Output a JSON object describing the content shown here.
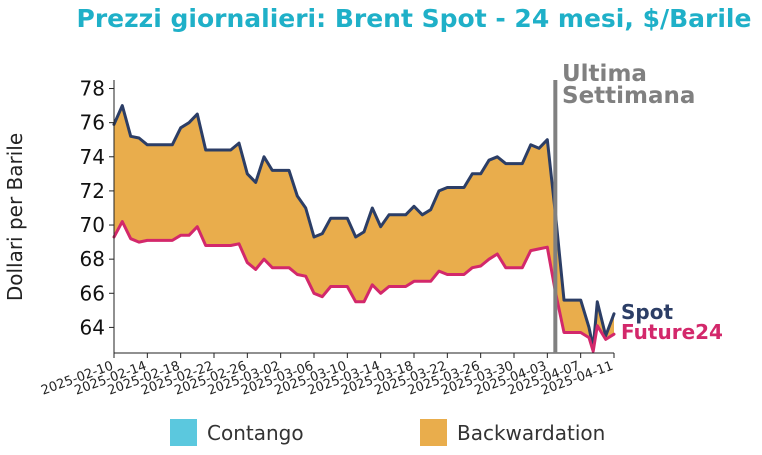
{
  "chart_data": {
    "type": "area",
    "title": "Prezzi giornalieri: Brent Spot - 24 mesi, $/Barile",
    "ylabel": "Dollari per Barile",
    "xlabel": "",
    "ylim": [
      62.5,
      78.5
    ],
    "yticks": [
      64,
      66,
      68,
      70,
      72,
      74,
      76,
      78
    ],
    "xlim": [
      "2025-02-10",
      "2025-04-11"
    ],
    "xticks": [
      "2025-02-10",
      "2025-02-14",
      "2025-02-18",
      "2025-02-22",
      "2025-02-26",
      "2025-03-02",
      "2025-03-06",
      "2025-03-10",
      "2025-03-14",
      "2025-03-18",
      "2025-03-22",
      "2025-03-26",
      "2025-03-30",
      "2025-04-03",
      "2025-04-07",
      "2025-04-11"
    ],
    "annotation": {
      "date": "2025-04-03",
      "text_line1": "Ultima",
      "text_line2": "Settimana",
      "color": "#808080"
    },
    "series": [
      {
        "name": "Spot",
        "color": "#2c3e66",
        "points": [
          [
            "2025-02-10",
            75.9
          ],
          [
            "2025-02-11",
            77.0
          ],
          [
            "2025-02-12",
            75.2
          ],
          [
            "2025-02-13",
            75.1
          ],
          [
            "2025-02-14",
            74.7
          ],
          [
            "2025-02-17",
            74.7
          ],
          [
            "2025-02-18",
            75.7
          ],
          [
            "2025-02-19",
            76.0
          ],
          [
            "2025-02-20",
            76.5
          ],
          [
            "2025-02-21",
            74.4
          ],
          [
            "2025-02-24",
            74.4
          ],
          [
            "2025-02-25",
            74.8
          ],
          [
            "2025-02-26",
            73.0
          ],
          [
            "2025-02-27",
            72.5
          ],
          [
            "2025-02-28",
            74.0
          ],
          [
            "2025-03-01",
            73.2
          ],
          [
            "2025-03-03",
            73.2
          ],
          [
            "2025-03-04",
            71.7
          ],
          [
            "2025-03-05",
            71.0
          ],
          [
            "2025-03-06",
            69.3
          ],
          [
            "2025-03-07",
            69.5
          ],
          [
            "2025-03-08",
            70.4
          ],
          [
            "2025-03-10",
            70.4
          ],
          [
            "2025-03-11",
            69.3
          ],
          [
            "2025-03-12",
            69.6
          ],
          [
            "2025-03-13",
            71.0
          ],
          [
            "2025-03-14",
            69.9
          ],
          [
            "2025-03-15",
            70.6
          ],
          [
            "2025-03-17",
            70.6
          ],
          [
            "2025-03-18",
            71.1
          ],
          [
            "2025-03-19",
            70.6
          ],
          [
            "2025-03-20",
            70.9
          ],
          [
            "2025-03-21",
            72.0
          ],
          [
            "2025-03-22",
            72.2
          ],
          [
            "2025-03-24",
            72.2
          ],
          [
            "2025-03-25",
            73.0
          ],
          [
            "2025-03-26",
            73.0
          ],
          [
            "2025-03-27",
            73.8
          ],
          [
            "2025-03-28",
            74.0
          ],
          [
            "2025-03-29",
            73.6
          ],
          [
            "2025-03-31",
            73.6
          ],
          [
            "2025-04-01",
            74.7
          ],
          [
            "2025-04-02",
            74.5
          ],
          [
            "2025-04-03",
            75.0
          ],
          [
            "2025-04-04",
            70.5
          ],
          [
            "2025-04-05",
            65.6
          ],
          [
            "2025-04-07",
            65.6
          ],
          [
            "2025-04-08",
            64.0
          ],
          [
            "2025-04-08T12:00",
            62.8
          ],
          [
            "2025-04-09",
            65.5
          ],
          [
            "2025-04-10",
            63.5
          ],
          [
            "2025-04-11",
            64.8
          ]
        ]
      },
      {
        "name": "Future24",
        "color": "#d3286b",
        "points": [
          [
            "2025-02-10",
            69.3
          ],
          [
            "2025-02-11",
            70.2
          ],
          [
            "2025-02-12",
            69.2
          ],
          [
            "2025-02-13",
            69.0
          ],
          [
            "2025-02-14",
            69.1
          ],
          [
            "2025-02-17",
            69.1
          ],
          [
            "2025-02-18",
            69.4
          ],
          [
            "2025-02-19",
            69.4
          ],
          [
            "2025-02-20",
            69.9
          ],
          [
            "2025-02-21",
            68.8
          ],
          [
            "2025-02-24",
            68.8
          ],
          [
            "2025-02-25",
            68.9
          ],
          [
            "2025-02-26",
            67.8
          ],
          [
            "2025-02-27",
            67.4
          ],
          [
            "2025-02-28",
            68.0
          ],
          [
            "2025-03-01",
            67.5
          ],
          [
            "2025-03-03",
            67.5
          ],
          [
            "2025-03-04",
            67.1
          ],
          [
            "2025-03-05",
            67.0
          ],
          [
            "2025-03-06",
            66.0
          ],
          [
            "2025-03-07",
            65.8
          ],
          [
            "2025-03-08",
            66.4
          ],
          [
            "2025-03-10",
            66.4
          ],
          [
            "2025-03-11",
            65.5
          ],
          [
            "2025-03-12",
            65.5
          ],
          [
            "2025-03-13",
            66.5
          ],
          [
            "2025-03-14",
            66.0
          ],
          [
            "2025-03-15",
            66.4
          ],
          [
            "2025-03-17",
            66.4
          ],
          [
            "2025-03-18",
            66.7
          ],
          [
            "2025-03-19",
            66.7
          ],
          [
            "2025-03-20",
            66.7
          ],
          [
            "2025-03-21",
            67.3
          ],
          [
            "2025-03-22",
            67.1
          ],
          [
            "2025-03-24",
            67.1
          ],
          [
            "2025-03-25",
            67.5
          ],
          [
            "2025-03-26",
            67.6
          ],
          [
            "2025-03-27",
            68.0
          ],
          [
            "2025-03-28",
            68.3
          ],
          [
            "2025-03-29",
            67.5
          ],
          [
            "2025-03-31",
            67.5
          ],
          [
            "2025-04-01",
            68.5
          ],
          [
            "2025-04-02",
            68.6
          ],
          [
            "2025-04-03",
            68.7
          ],
          [
            "2025-04-04",
            66.0
          ],
          [
            "2025-04-05",
            63.7
          ],
          [
            "2025-04-07",
            63.7
          ],
          [
            "2025-04-08",
            63.4
          ],
          [
            "2025-04-08T12:00",
            62.6
          ],
          [
            "2025-04-09",
            64.1
          ],
          [
            "2025-04-10",
            63.3
          ],
          [
            "2025-04-11",
            63.6
          ]
        ]
      }
    ],
    "legend": {
      "placement": "bottom",
      "items": [
        {
          "label": "Contango",
          "color": "#5bc8de"
        },
        {
          "label": "Backwardation",
          "color": "#e9ad4c"
        }
      ]
    }
  }
}
